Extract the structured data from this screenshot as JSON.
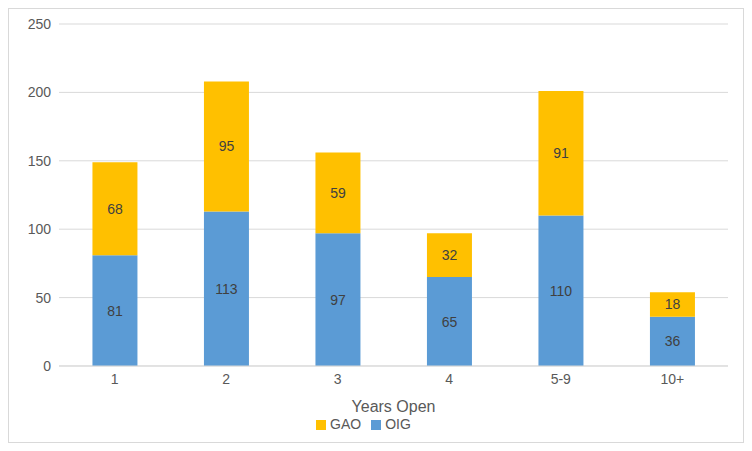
{
  "chart_data": {
    "type": "bar",
    "x_label": "Years Open",
    "categories": [
      "1",
      "2",
      "3",
      "4",
      "5-9",
      "10+"
    ],
    "series": [
      {
        "name": "OIG",
        "color": "#5b9bd5",
        "values": [
          81,
          113,
          97,
          65,
          110,
          36
        ]
      },
      {
        "name": "GAO",
        "color": "#ffc000",
        "values": [
          68,
          95,
          59,
          32,
          91,
          18
        ]
      }
    ],
    "ylim": [
      0,
      250
    ],
    "yticks": [
      0,
      50,
      100,
      150,
      200,
      250
    ],
    "grid": true,
    "stacked": true,
    "data_labels": true,
    "legend": "bottom"
  }
}
